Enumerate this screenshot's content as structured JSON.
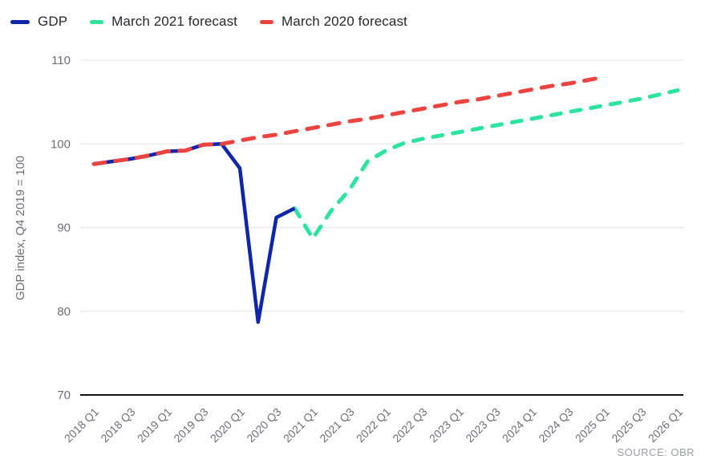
{
  "chart_data": {
    "type": "line",
    "title": "",
    "ylabel": "GDP index, Q4 2019 = 100",
    "ylim": [
      70,
      110
    ],
    "y_ticks": [
      70,
      80,
      90,
      100,
      110
    ],
    "x_tick_labels": [
      "2018 Q1",
      "2018 Q3",
      "2019 Q1",
      "2019 Q3",
      "2020 Q1",
      "2020 Q3",
      "2021 Q1",
      "2021 Q3",
      "2022 Q1",
      "2022 Q3",
      "2023 Q1",
      "2023 Q3",
      "2024 Q1",
      "2024 Q3",
      "2025 Q1",
      "2025 Q3",
      "2026 Q1"
    ],
    "x_quarters_span": [
      "2018 Q1",
      "2026 Q1"
    ],
    "grid": "horizontal",
    "legend_position": "top-left",
    "source": "SOURCE: OBR",
    "series": [
      {
        "name": "GDP",
        "color": "#0f25aa",
        "style": "solid",
        "start_quarter": "2018 Q1",
        "start_index": 0,
        "values": [
          97.6,
          97.9,
          98.2,
          98.6,
          99.1,
          99.2,
          99.9,
          100.0,
          97.1,
          78.7,
          91.2,
          92.3
        ]
      },
      {
        "name": "March 2021 forecast",
        "color": "#2ee3a0",
        "style": "dashed",
        "start_quarter": "2020 Q4",
        "start_index": 11,
        "values": [
          92.3,
          88.7,
          92.0,
          94.5,
          97.9,
          99.2,
          100.1,
          100.6,
          101.0,
          101.4,
          101.8,
          102.2,
          102.6,
          103.0,
          103.4,
          103.8,
          104.2,
          104.6,
          105.0,
          105.4,
          105.9,
          106.4
        ]
      },
      {
        "name": "March 2020 forecast",
        "color": "#ea4441",
        "style": "dashed",
        "start_quarter": "2018 Q1",
        "start_index": 0,
        "values": [
          97.6,
          97.9,
          98.2,
          98.6,
          99.1,
          99.2,
          99.9,
          100.0,
          100.4,
          100.8,
          101.1,
          101.5,
          101.9,
          102.3,
          102.7,
          103.0,
          103.4,
          103.8,
          104.2,
          104.6,
          105.0,
          105.3,
          105.7,
          106.1,
          106.5,
          106.9,
          107.2,
          107.6,
          108.0
        ]
      }
    ],
    "colors": {
      "gridline": "#e9e9eb",
      "axis": "#111111",
      "tick_text": "#6e7076",
      "source_text": "#9b9ea3"
    }
  }
}
